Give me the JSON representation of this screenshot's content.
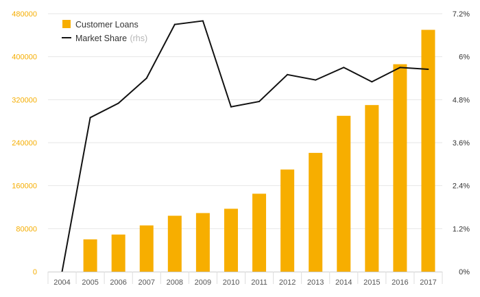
{
  "chart_data": {
    "type": "bar+line",
    "categories": [
      "2004",
      "2005",
      "2006",
      "2007",
      "2008",
      "2009",
      "2010",
      "2011",
      "2012",
      "2013",
      "2014",
      "2015",
      "2016",
      "2017"
    ],
    "series": [
      {
        "name": "Customer Loans",
        "type": "bar",
        "axis": "left",
        "color": "#f7ae00",
        "values": [
          0,
          60000,
          69000,
          86000,
          104000,
          109000,
          117000,
          145000,
          190000,
          221000,
          290000,
          310000,
          386000,
          450000
        ]
      },
      {
        "name": "Market Share",
        "axis_suffix": "(rhs)",
        "type": "line",
        "axis": "right",
        "color": "#111111",
        "values": [
          0.0,
          4.3,
          4.7,
          5.4,
          6.9,
          7.0,
          4.6,
          4.75,
          5.5,
          5.35,
          5.7,
          5.3,
          5.7,
          5.65
        ]
      }
    ],
    "left_axis": {
      "ylim": [
        0,
        480000
      ],
      "ticks": [
        "0",
        "80000",
        "160000",
        "240000",
        "320000",
        "400000",
        "480000"
      ],
      "tick_values": [
        0,
        80000,
        160000,
        240000,
        320000,
        400000,
        480000
      ],
      "color": "#f5ad00"
    },
    "right_axis": {
      "ylim": [
        0,
        7.2
      ],
      "ticks": [
        "0%",
        "1.2%",
        "2.4%",
        "3.6%",
        "4.8%",
        "6%",
        "7.2%"
      ],
      "tick_values": [
        0,
        1.2,
        2.4,
        3.6,
        4.8,
        6.0,
        7.2
      ]
    },
    "grid": true,
    "legend_position": "top-left"
  }
}
